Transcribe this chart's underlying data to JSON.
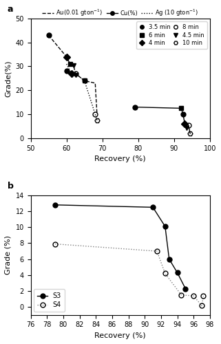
{
  "panel_a": {
    "Au_recovery": [
      55,
      60,
      61,
      62,
      62.5,
      65,
      68,
      68.5
    ],
    "Au_grade": [
      43,
      34,
      31,
      30,
      27,
      24,
      23,
      10
    ],
    "Cu_recovery": [
      79,
      92,
      92.5,
      93,
      93.5,
      94,
      94.5
    ],
    "Cu_grade": [
      13,
      12.5,
      10.0,
      6.0,
      4.2,
      5.5,
      2.0
    ],
    "Ag_recovery": [
      60,
      61,
      62,
      63,
      65,
      68,
      68.5
    ],
    "Ag_grade": [
      31,
      28,
      27,
      26.5,
      24,
      10,
      7.5
    ],
    "au_markers": [
      [
        55,
        43,
        "o",
        "full"
      ],
      [
        60,
        34,
        "D",
        "full"
      ],
      [
        62,
        30.5,
        "v",
        "full"
      ],
      [
        61,
        31,
        "s",
        "full"
      ],
      [
        62.5,
        27,
        "o",
        "none"
      ],
      [
        65,
        24,
        "H",
        "none"
      ]
    ],
    "ag_markers": [
      [
        60,
        28,
        "o",
        "full"
      ],
      [
        61.5,
        27,
        "D",
        "full"
      ],
      [
        62.5,
        26.5,
        "v",
        "full"
      ],
      [
        65,
        24,
        "s",
        "full"
      ],
      [
        68,
        10,
        "o",
        "none"
      ],
      [
        68.5,
        7.5,
        "H",
        "none"
      ]
    ],
    "cu_markers": [
      [
        79,
        13,
        "o",
        "full"
      ],
      [
        92,
        12.5,
        "s",
        "full"
      ],
      [
        92.5,
        10.0,
        "o",
        "full"
      ],
      [
        93,
        6.0,
        "D",
        "full"
      ],
      [
        93.5,
        4.2,
        "v",
        "full"
      ],
      [
        94,
        5.5,
        "o",
        "none"
      ],
      [
        94.5,
        2.0,
        "H",
        "none"
      ]
    ],
    "xlim": [
      50,
      100
    ],
    "ylim": [
      0,
      50
    ],
    "xticks": [
      50,
      60,
      70,
      80,
      90,
      100
    ],
    "yticks": [
      0,
      10,
      20,
      30,
      40,
      50
    ],
    "xlabel": "Recovery (%)",
    "ylabel": "Grade(%)"
  },
  "panel_b": {
    "S3_recovery": [
      79,
      91,
      92.5,
      93,
      94,
      95
    ],
    "S3_grade": [
      12.8,
      12.5,
      10.1,
      6.0,
      4.3,
      2.3
    ],
    "S4_recovery": [
      79,
      91.5,
      92.5,
      94.5,
      96,
      97,
      97.2
    ],
    "S4_grade": [
      7.9,
      7.0,
      4.2,
      1.5,
      1.4,
      0.15,
      1.4
    ],
    "xlim": [
      76,
      98
    ],
    "ylim": [
      -1,
      14
    ],
    "xticks": [
      76,
      78,
      80,
      82,
      84,
      86,
      88,
      90,
      92,
      94,
      96,
      98
    ],
    "yticks": [
      0,
      2,
      4,
      6,
      8,
      10,
      12,
      14
    ],
    "xlabel": "Recovery (%)",
    "ylabel": "Grade (%)"
  },
  "bg_color": "#ffffff"
}
